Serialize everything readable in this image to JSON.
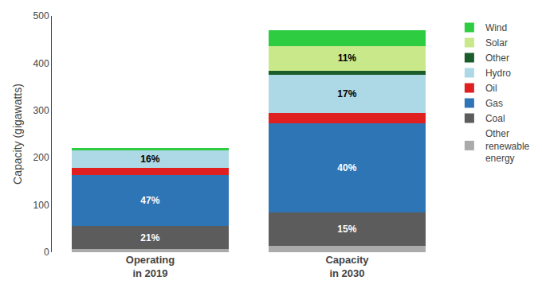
{
  "chart_data": {
    "type": "bar",
    "stacked": true,
    "categories": [
      "Operating\nin 2019",
      "Capacity\nin 2030"
    ],
    "ylabel": "Capacity (gigawatts)",
    "ylim": [
      0,
      500
    ],
    "yticks": [
      0,
      100,
      200,
      300,
      400,
      500
    ],
    "grid": false,
    "legend": "right",
    "series": [
      {
        "name": "Other\nrenewable\nenergy",
        "color": "#aaaaaa",
        "values": [
          7,
          14
        ]
      },
      {
        "name": "Coal",
        "color": "#5c5c5c",
        "values": [
          48,
          70
        ]
      },
      {
        "name": "Gas",
        "color": "#2e75b6",
        "values": [
          108,
          188
        ]
      },
      {
        "name": "Oil",
        "color": "#e02020",
        "values": [
          16,
          23
        ]
      },
      {
        "name": "Hydro",
        "color": "#add8e6",
        "values": [
          37,
          80
        ]
      },
      {
        "name": "Other",
        "color": "#1a5c2a",
        "values": [
          0,
          9
        ]
      },
      {
        "name": "Solar",
        "color": "#c8e88a",
        "values": [
          0,
          52
        ]
      },
      {
        "name": "Wind",
        "color": "#2ecc40",
        "values": [
          5,
          33
        ]
      }
    ],
    "annotations": [
      {
        "series": "Coal",
        "category": "Operating\nin 2019",
        "text": "21%",
        "color": "white"
      },
      {
        "series": "Gas",
        "category": "Operating\nin 2019",
        "text": "47%",
        "color": "white"
      },
      {
        "series": "Hydro",
        "category": "Operating\nin 2019",
        "text": "16%",
        "color": "black"
      },
      {
        "series": "Coal",
        "category": "Capacity\nin 2030",
        "text": "15%",
        "color": "white"
      },
      {
        "series": "Gas",
        "category": "Capacity\nin 2030",
        "text": "40%",
        "color": "white"
      },
      {
        "series": "Hydro",
        "category": "Capacity\nin 2030",
        "text": "17%",
        "color": "black"
      },
      {
        "series": "Solar",
        "category": "Capacity\nin 2030",
        "text": "11%",
        "color": "black"
      }
    ]
  }
}
